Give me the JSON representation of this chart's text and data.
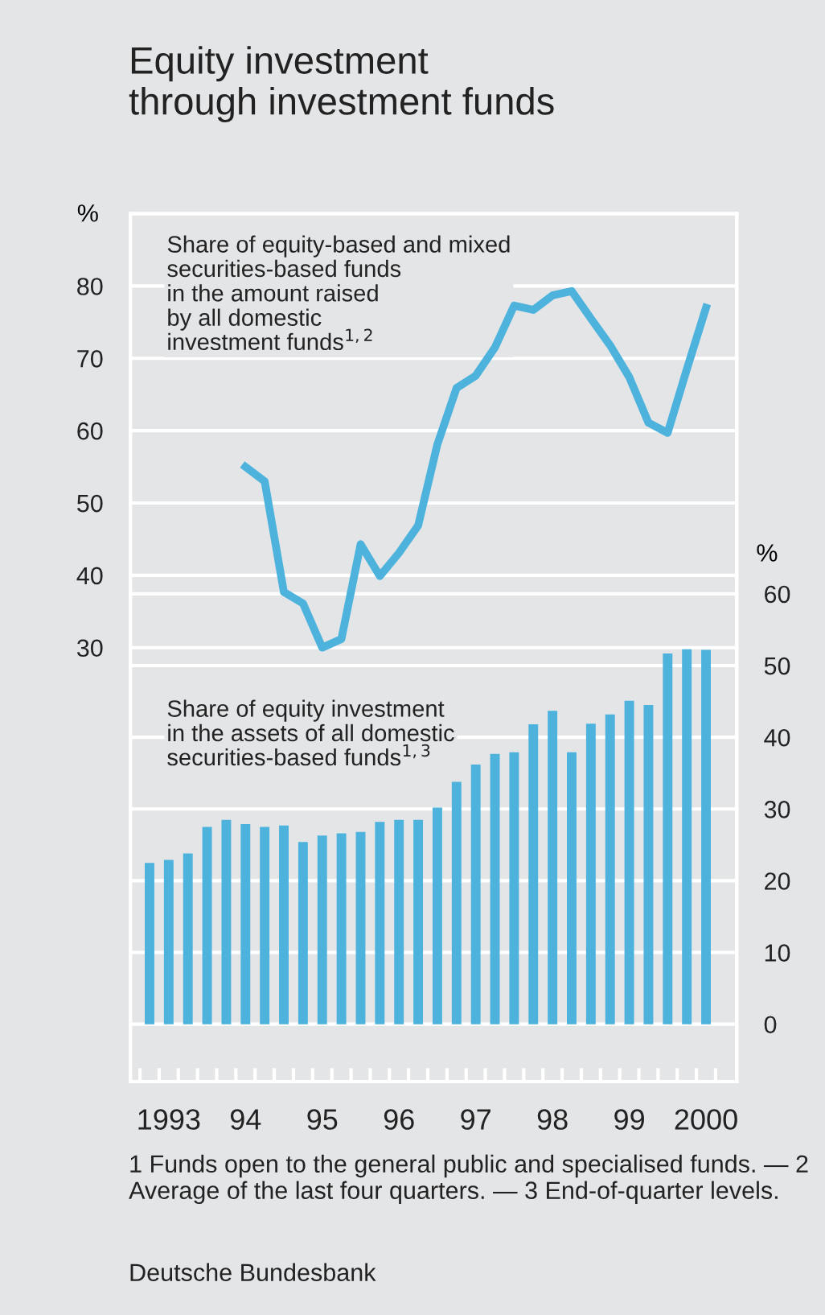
{
  "chart_data": {
    "type": "bar",
    "title": "Equity investment\nthrough investment funds",
    "categories": [
      null,
      "1993",
      null,
      null,
      null,
      "94",
      null,
      null,
      null,
      "95",
      null,
      null,
      null,
      "96",
      null,
      null,
      null,
      "97",
      null,
      null,
      null,
      "98",
      null,
      null,
      null,
      "99",
      null,
      null,
      null,
      "2000"
    ],
    "series": [
      {
        "name": "Share of equity-based and mixed\nsecurities-based funds\nin the amount raised\nby all domestic\ninvestment funds$^{1,2}$",
        "type": "line",
        "color": "#4db3dd",
        "values": [
          null,
          null,
          null,
          null,
          null,
          55.0,
          53.0,
          37.7,
          36.1,
          30.0,
          31.2,
          44.3,
          39.9,
          43.1,
          46.9,
          58.1,
          65.9,
          67.6,
          71.5,
          77.3,
          76.7,
          78.7,
          79.3,
          75.5,
          71.8,
          67.4,
          61.1,
          59.7,
          68.5,
          77.0
        ]
      },
      {
        "name": "Share of equity investment\nin the assets of all domestic\nsecurities-based funds$^{1,3}$",
        "axis": "y2",
        "color": "#4db3dd",
        "values": [
          22.5,
          22.9,
          23.8,
          27.5,
          28.5,
          27.9,
          27.5,
          27.7,
          25.4,
          26.3,
          26.6,
          26.8,
          28.2,
          28.5,
          28.5,
          30.2,
          33.8,
          36.2,
          37.7,
          37.9,
          41.8,
          43.7,
          37.9,
          41.9,
          43.2,
          45.1,
          44.5,
          51.7,
          52.5,
          52.2
        ]
      }
    ],
    "ylabel": "%",
    "y2label": "%",
    "ylim": [
      -30,
      90
    ],
    "yticks": [
      30,
      40,
      50,
      60,
      70,
      80
    ],
    "y2lim": [
      -8,
      113
    ],
    "y2ticks": [
      0,
      10,
      20,
      30,
      40,
      50,
      60
    ],
    "grid": "y",
    "annotations": [
      "1 Funds open to the general public and specialised funds. — 2 Average of the last four quarters. — 3 End-of-quarter levels.",
      "Deutsche Bundesbank"
    ]
  }
}
